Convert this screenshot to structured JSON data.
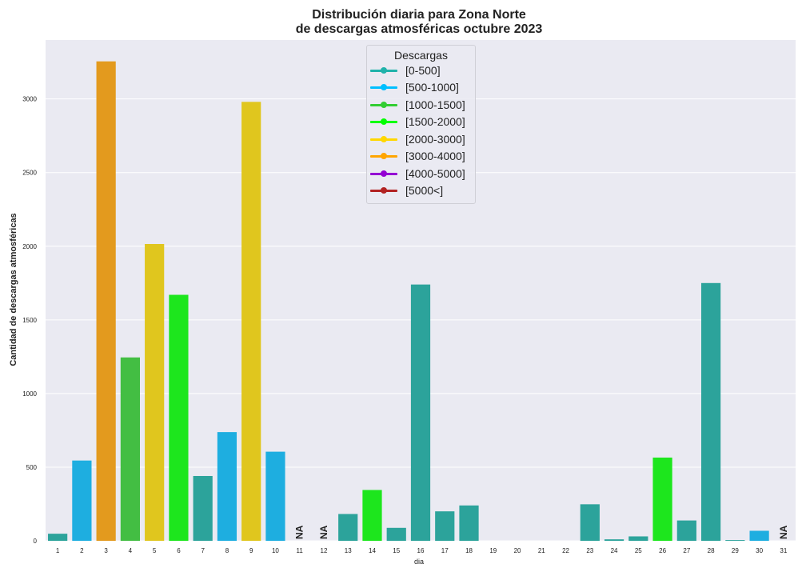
{
  "chart_data": {
    "type": "bar",
    "title_line1": "Distribución diaria para Zona Norte",
    "title_line2": "de descargas atmosféricas octubre 2023",
    "xlabel": "dia",
    "ylabel": "Cantidad de descargas atmosféricas",
    "ylim": [
      0,
      3400
    ],
    "yticks": [
      0,
      500,
      1000,
      1500,
      2000,
      2500,
      3000
    ],
    "grid": true,
    "legend_placement": "top-center",
    "legend_title": "Descargas",
    "legend": [
      {
        "label": "[0-500]",
        "color": "#20b2aa"
      },
      {
        "label": "[500-1000]",
        "color": "#00bfff"
      },
      {
        "label": "[1000-1500]",
        "color": "#32cd32"
      },
      {
        "label": "[1500-2000]",
        "color": "#00ff00"
      },
      {
        "label": "[2000-3000]",
        "color": "#ffd700"
      },
      {
        "label": "[3000-4000]",
        "color": "#ffa500"
      },
      {
        "label": "[4000-5000]",
        "color": "#9400d3"
      },
      {
        "label": "[5000<]",
        "color": "#b22222"
      }
    ],
    "categories": [
      "1",
      "2",
      "3",
      "4",
      "5",
      "6",
      "7",
      "8",
      "9",
      "10",
      "11",
      "12",
      "13",
      "14",
      "15",
      "16",
      "17",
      "18",
      "19",
      "20",
      "21",
      "22",
      "23",
      "24",
      "25",
      "26",
      "27",
      "28",
      "29",
      "30",
      "31"
    ],
    "values": [
      48,
      545,
      3255,
      1245,
      2015,
      1670,
      440,
      738,
      2980,
      605,
      null,
      null,
      182,
      345,
      88,
      1740,
      200,
      240,
      0,
      0,
      0,
      0,
      248,
      10,
      30,
      565,
      138,
      1750,
      5,
      68,
      null
    ],
    "bar_colors": [
      "#2ca39b",
      "#1eaee0",
      "#e39a1e",
      "#43be43",
      "#e0c61e",
      "#1de61d",
      "#2ca39b",
      "#1eaee0",
      "#e0c61e",
      "#1eaee0",
      "#2ca39b",
      "#2ca39b",
      "#2ca39b",
      "#1de61d",
      "#2ca39b",
      "#2ca39b",
      "#2ca39b",
      "#2ca39b",
      "#2ca39b",
      "#2ca39b",
      "#2ca39b",
      "#2ca39b",
      "#2ca39b",
      "#2ca39b",
      "#2ca39b",
      "#1de61d",
      "#2ca39b",
      "#2ca39b",
      "#2ca39b",
      "#1eaee0",
      "#2ca39b"
    ],
    "na_label": "NA"
  }
}
